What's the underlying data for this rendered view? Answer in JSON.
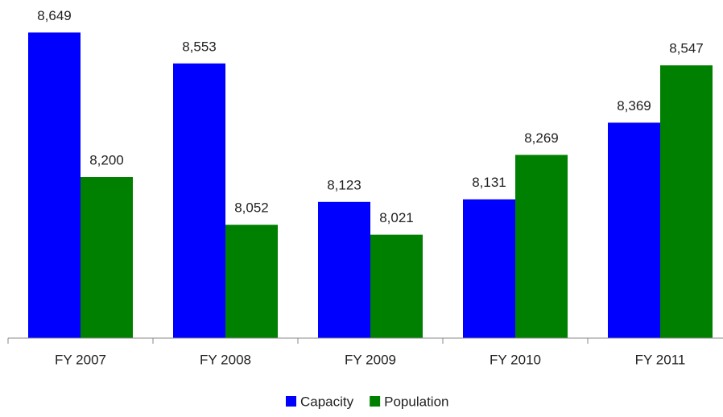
{
  "chart_data": {
    "type": "bar",
    "categories": [
      "FY 2007",
      "FY 2008",
      "FY 2009",
      "FY 2010",
      "FY 2011"
    ],
    "series": [
      {
        "name": "Capacity",
        "color": "#0000ff",
        "values": [
          8649,
          8553,
          8123,
          8131,
          8369
        ],
        "value_labels": [
          "8,649",
          "8,553",
          "8,123",
          "8,131",
          "8,369"
        ]
      },
      {
        "name": "Population",
        "color": "#008000",
        "values": [
          8200,
          8052,
          8021,
          8269,
          8547
        ],
        "value_labels": [
          "8,200",
          "8,052",
          "8,021",
          "8,269",
          "8,547"
        ]
      }
    ],
    "ylim": [
      7700,
      8750
    ],
    "legend": "bottom"
  }
}
